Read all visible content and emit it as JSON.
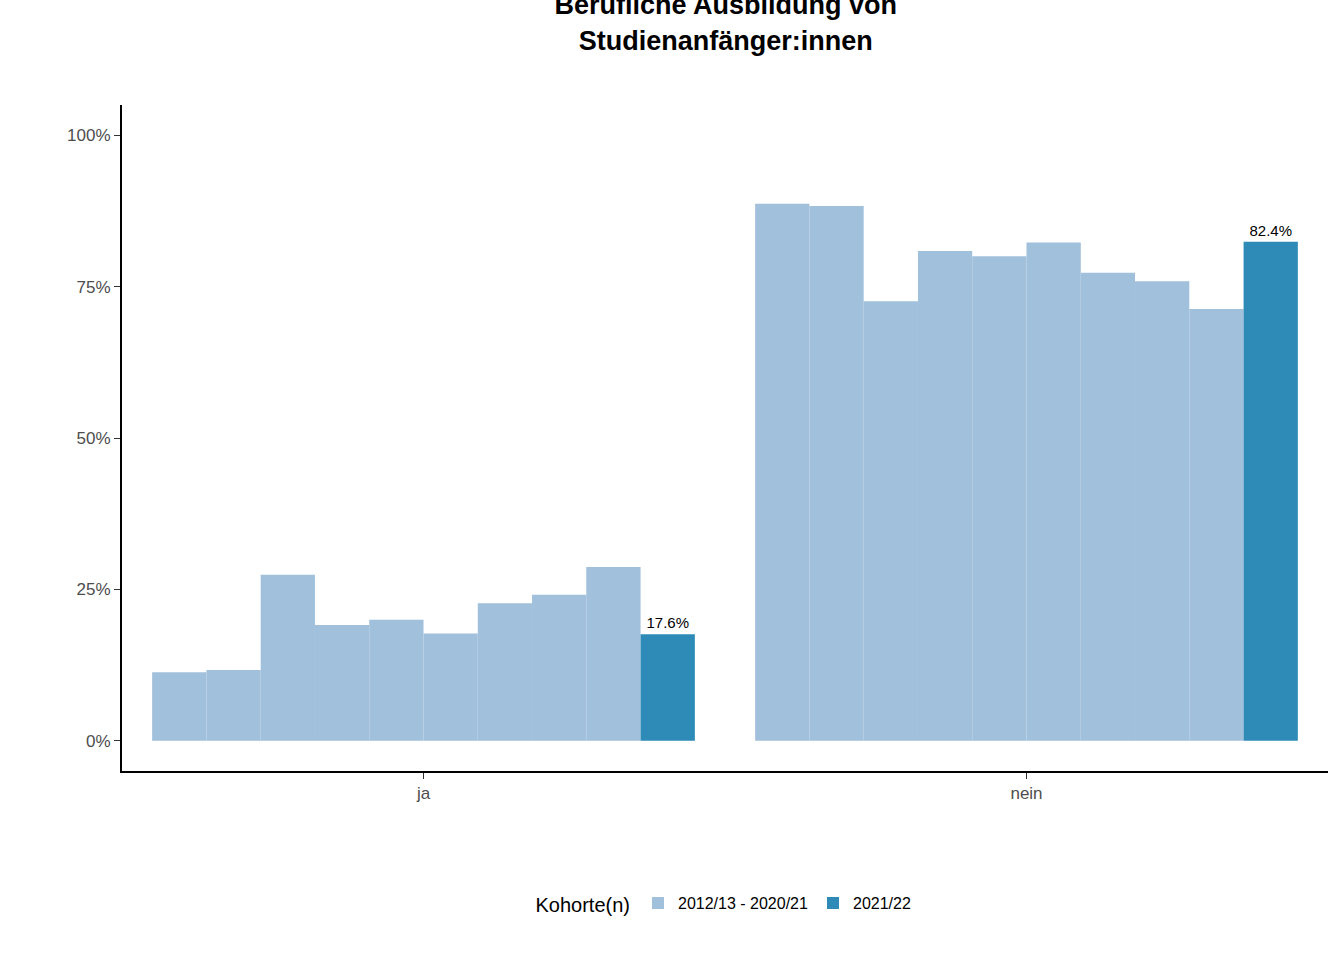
{
  "chart_data": {
    "type": "bar",
    "title": "Berufliche Ausbildung von\nStudienanfänger:innen",
    "categories": [
      "ja",
      "nein"
    ],
    "legend_title": "Kohorte(n)",
    "series": [
      {
        "name": "2012/13 - 2020/21",
        "color": "#a1c0dc",
        "values": [
          [
            11.3,
            11.7,
            27.4,
            19.1,
            20.0,
            17.7,
            22.7,
            24.1,
            28.7
          ],
          [
            88.7,
            88.3,
            72.6,
            80.9,
            80.0,
            82.3,
            77.3,
            75.9,
            71.3
          ]
        ]
      },
      {
        "name": "2021/22",
        "color": "#2e8bb8",
        "values": [
          17.6,
          82.4
        ],
        "value_labels": [
          "17.6%",
          "82.4%"
        ],
        "data_labels": true
      }
    ],
    "ylim": [
      -5,
      105
    ],
    "yticks": [
      {
        "value": 0,
        "label": "0%"
      },
      {
        "value": 25,
        "label": "25%"
      },
      {
        "value": 50,
        "label": "50%"
      },
      {
        "value": 75,
        "label": "75%"
      },
      {
        "value": 100,
        "label": "100%"
      }
    ],
    "grid": false,
    "legend": "bottom"
  }
}
